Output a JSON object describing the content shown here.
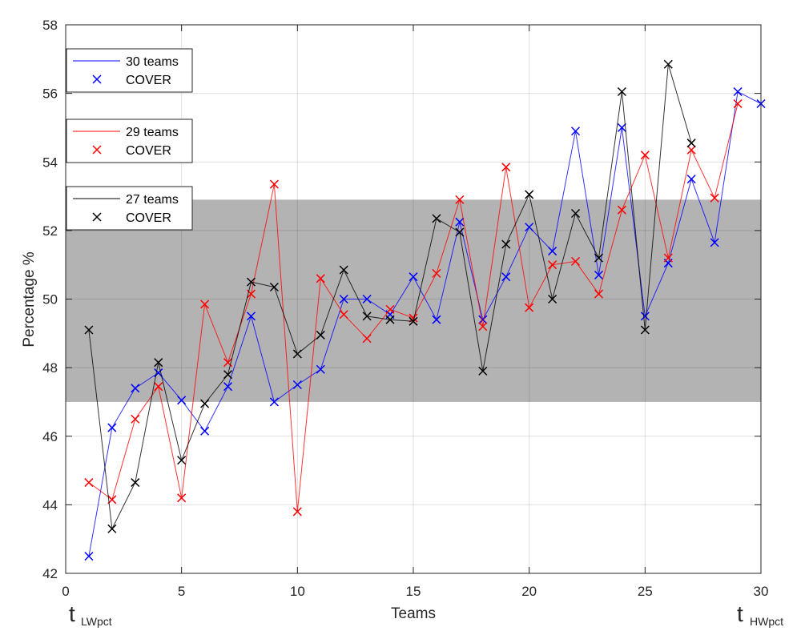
{
  "chart_data": {
    "type": "line",
    "title": "",
    "xlabel": "Teams",
    "ylabel": "Percentage %",
    "xlim": [
      0,
      30
    ],
    "ylim": [
      42,
      58
    ],
    "xticks": [
      0,
      5,
      10,
      15,
      20,
      25,
      30
    ],
    "yticks": [
      42,
      44,
      46,
      48,
      50,
      52,
      54,
      56,
      58
    ],
    "grid": true,
    "band": {
      "ymin": 47.0,
      "ymax": 52.9,
      "color": "#b3b3b3"
    },
    "x_annotations": [
      {
        "base": "t",
        "sub": "LWpct",
        "position": "left"
      },
      {
        "base": "t",
        "sub": "HWpct",
        "position": "right"
      }
    ],
    "series": [
      {
        "name": "30 teams",
        "marker_label": "COVER",
        "color": "#0000ff",
        "x": [
          1,
          2,
          3,
          4,
          5,
          6,
          7,
          8,
          9,
          10,
          11,
          12,
          13,
          14,
          15,
          16,
          17,
          18,
          19,
          20,
          21,
          22,
          23,
          24,
          25,
          26,
          27,
          28,
          29,
          30
        ],
        "values": [
          42.5,
          46.25,
          47.4,
          47.85,
          47.05,
          46.15,
          47.45,
          49.5,
          47.0,
          47.5,
          47.95,
          50.0,
          50.0,
          49.55,
          50.65,
          49.4,
          52.25,
          49.4,
          50.65,
          52.1,
          51.4,
          54.9,
          50.7,
          55.0,
          49.5,
          51.05,
          53.5,
          51.65,
          56.05,
          55.7
        ]
      },
      {
        "name": "29 teams",
        "marker_label": "COVER",
        "color": "#ff0000",
        "x": [
          1,
          2,
          3,
          4,
          5,
          6,
          7,
          8,
          9,
          10,
          11,
          12,
          13,
          14,
          15,
          16,
          17,
          18,
          19,
          20,
          21,
          22,
          23,
          24,
          25,
          26,
          27,
          28,
          29
        ],
        "values": [
          44.65,
          44.15,
          46.5,
          47.45,
          44.2,
          49.85,
          48.15,
          50.15,
          53.35,
          43.8,
          50.6,
          49.55,
          48.85,
          49.7,
          49.45,
          50.75,
          52.9,
          49.2,
          53.85,
          49.75,
          51.0,
          51.1,
          50.15,
          52.6,
          54.2,
          51.2,
          54.35,
          52.95,
          55.7
        ]
      },
      {
        "name": "27 teams",
        "marker_label": "COVER",
        "color": "#000000",
        "x": [
          1,
          2,
          3,
          4,
          5,
          6,
          7,
          8,
          9,
          10,
          11,
          12,
          13,
          14,
          15,
          16,
          17,
          18,
          19,
          20,
          21,
          22,
          23,
          24,
          25,
          26,
          27
        ],
        "values": [
          49.1,
          43.3,
          44.65,
          48.15,
          45.3,
          46.95,
          47.8,
          50.5,
          50.35,
          48.4,
          48.95,
          50.85,
          49.5,
          49.4,
          49.35,
          52.35,
          51.95,
          47.9,
          51.6,
          53.05,
          50.0,
          52.5,
          51.2,
          56.05,
          49.1,
          56.85,
          54.55
        ]
      }
    ],
    "legends": [
      {
        "line_label": "30 teams",
        "marker_label": "COVER",
        "color": "#0000ff"
      },
      {
        "line_label": "29 teams",
        "marker_label": "COVER",
        "color": "#ff0000"
      },
      {
        "line_label": "27 teams",
        "marker_label": "COVER",
        "color": "#000000"
      }
    ]
  }
}
